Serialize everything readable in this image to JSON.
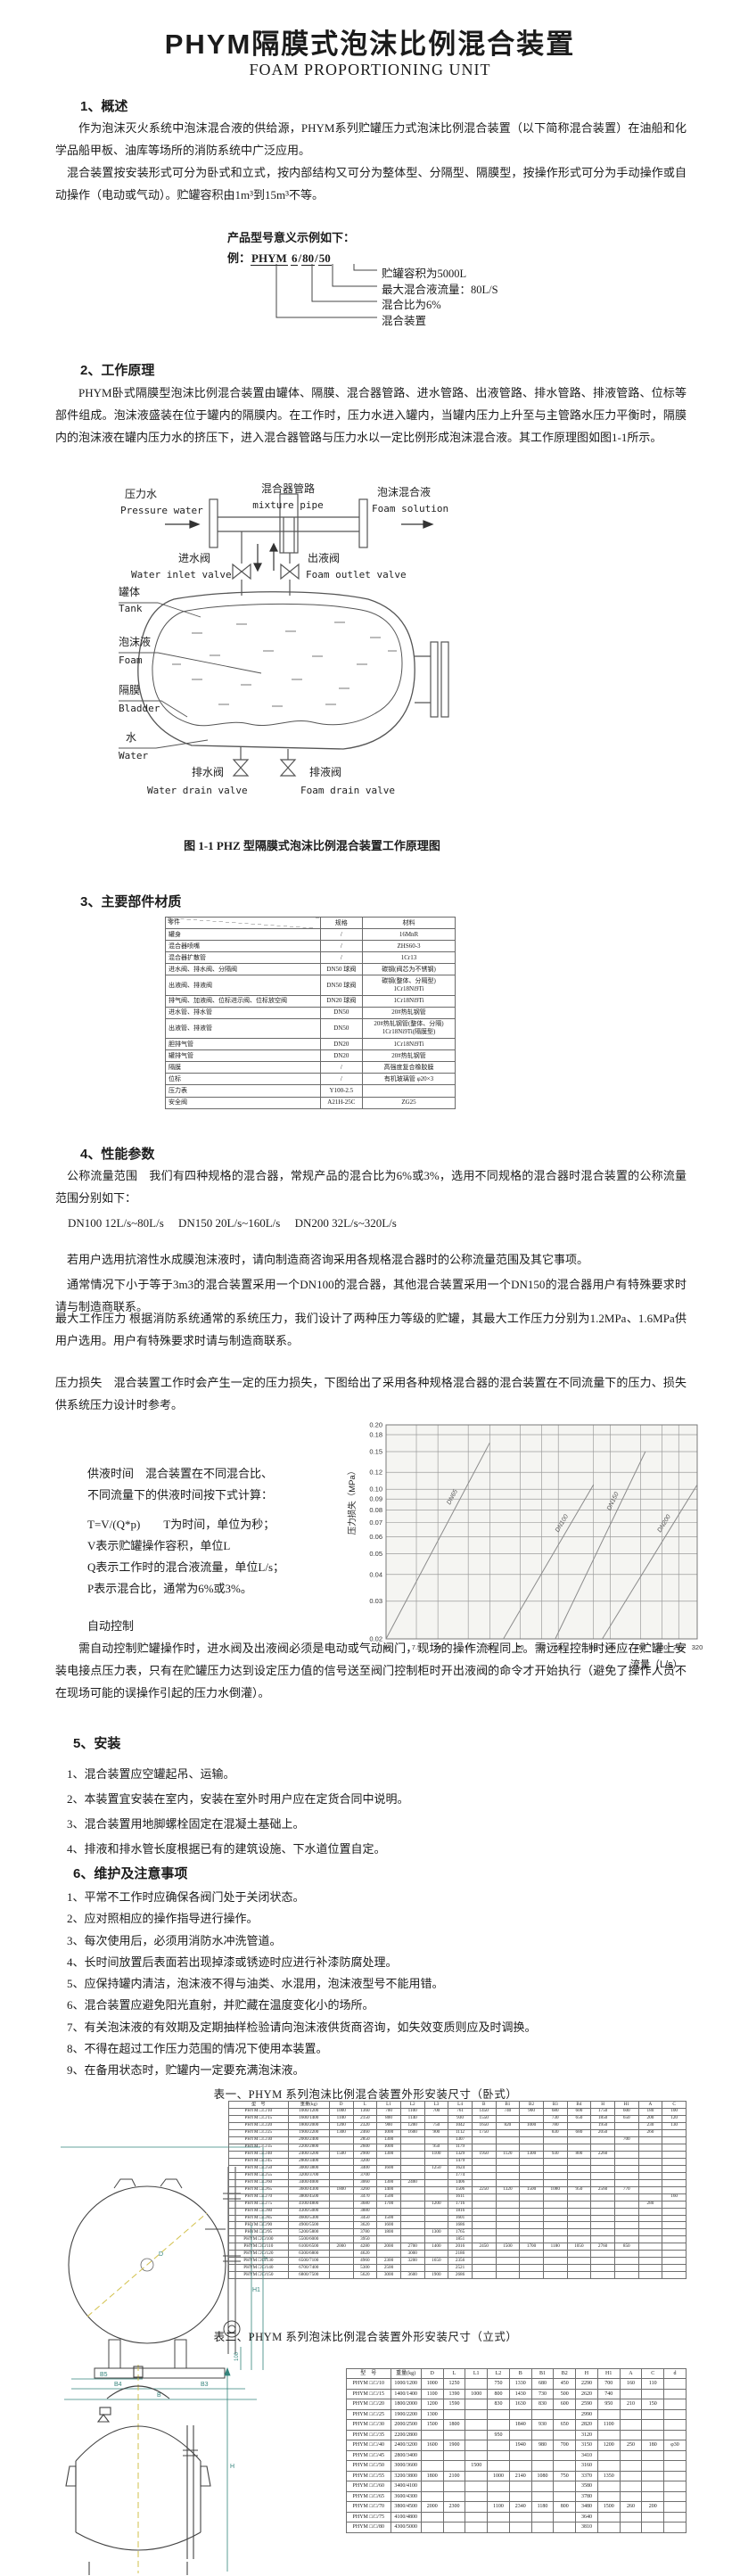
{
  "page": {
    "title": "PHYM隔膜式泡沫比例混合装置",
    "subtitle": "FOAM PROPORTIONING UNIT"
  },
  "s1": {
    "heading": "1、概述",
    "p1": "作为泡沫灭火系统中泡沫混合液的供给源，PHYM系列贮罐压力式泡沫比例混合装置（以下简称混合装置）在油船和化学品船甲板、油库等场所的消防系统中广泛应用。",
    "p2": "混合装置按安装形式可分为卧式和立式，按内部结构又可分为整体型、分隔型、隔膜型，按操作形式可分为手动操作或自动操作（电动或气动）。贮罐容积由1m³到15m³不等。"
  },
  "model": {
    "intro": "产品型号意义示例如下：",
    "prefix": "例：",
    "sep": "/",
    "parts": [
      "PHYM",
      "6",
      "80",
      "50"
    ],
    "labels": [
      "贮罐容积为5000L",
      "最大混合液流量：80L/S",
      "混合比为6%",
      "混合装置"
    ]
  },
  "s2": {
    "heading": "2、工作原理",
    "p1": "PHYM卧式隔膜型泡沫比例混合装置由罐体、隔膜、混合器管路、进水管路、出液管路、排水管路、排液管路、位标等部件组成。泡沫液盛装在位于罐内的隔膜内。在工作时，压力水进入罐内，当罐内压力上升至与主管路水压力平衡时，隔膜内的泡沫液在罐内压力水的挤压下，进入混合器管路与压力水以一定比例形成泡沫混合液。其工作原理图如图1-1所示。"
  },
  "figure": {
    "caption": "图 1-1 PHZ 型隔膜式泡沫比例混合装置工作原理图",
    "labels": {
      "pressure_water": {
        "cn": "压力水",
        "en": "Pressure water"
      },
      "mixture_pipe": {
        "cn": "混合器管路",
        "en": "mixture pipe"
      },
      "foam_solution": {
        "cn": "泡沫混合液",
        "en": "Foam solution"
      },
      "water_inlet": {
        "cn": "进水阀",
        "en": "Water inlet valve"
      },
      "foam_outlet": {
        "cn": "出液阀",
        "en": "Foam outlet valve"
      },
      "tank": {
        "cn": "罐体",
        "en": "Tank"
      },
      "foam": {
        "cn": "泡沫液",
        "en": "Foam"
      },
      "bladder": {
        "cn": "隔膜",
        "en": "Bladder"
      },
      "water": {
        "cn": "水",
        "en": "Water"
      },
      "water_drain": {
        "cn": "排水阀",
        "en": "Water drain valve"
      },
      "foam_drain": {
        "cn": "排液阀",
        "en": "Foam drain valve"
      }
    }
  },
  "s3": {
    "heading": "3、主要部件材质",
    "materials_table": {
      "headers": [
        "零件",
        "规格",
        "材料"
      ],
      "rows": [
        [
          "罐身",
          "/",
          "16MnR"
        ],
        [
          "混合器喷嘴",
          "/",
          "ZHS60-3"
        ],
        [
          "混合器扩散管",
          "/",
          "1Cr13"
        ],
        [
          "进水阀、排水阀、分隔阀",
          "DN50 球阀",
          "碳钢(阀芯为不锈钢)"
        ],
        [
          "出液阀、排液阀",
          "DN50 球阀",
          "碳钢(整体、分隔型)\n1Cr18Ni9Ti"
        ],
        [
          "排气阀、加液阀、位标进示阀、位标放空阀",
          "DN20 球阀",
          "1Cr18Ni9Ti"
        ],
        [
          "进水管、排水管",
          "DN50",
          "20#热轧钢管"
        ],
        [
          "出液管、排液管",
          "DN50",
          "20#热轧钢管(整体、分隔)\n1Cr18Ni9Ti(隔膜型)"
        ],
        [
          "胆排气管",
          "DN20",
          "1Cr18Ni9Ti"
        ],
        [
          "罐排气管",
          "DN20",
          "20#热轧钢管"
        ],
        [
          "隔膜",
          "/",
          "高强度复合橡胶膜"
        ],
        [
          "位标",
          "/",
          "有机玻璃管 φ20×3"
        ],
        [
          "压力表",
          "Y100-2.5",
          ""
        ],
        [
          "安全阀",
          "A21H-25C",
          "ZG25"
        ]
      ]
    }
  },
  "s4": {
    "heading": "4、性能参数",
    "p1": "公称流量范围　我们有四种规格的混合器，常规产品的混合比为6%或3%，选用不同规格的混合器时混合装置的公称流量范围分别如下：",
    "flow_spec": "DN100  12L/s~80L/s　 DN150  20L/s~160L/s　 DN200  32L/s~320L/s",
    "p2": "若用户选用抗溶性水成膜泡沫液时，请向制造商咨询采用各规格混合器时的公称流量范围及其它事项。",
    "p3": "通常情况下小于等于3m3的混合装置采用一个DN100的混合器，其他混合装置采用一个DN150的混合器用户有特殊要求时请与制造商联系。",
    "p4": "最大工作压力 根据消防系统通常的系统压力，我们设计了两种压力等级的贮罐，其最大工作压力分别为1.2MPa、1.6MPa供用户选用。用户有特殊要求时请与制造商联系。",
    "p5": "压力损失　混合装置工作时会产生一定的压力损失，下图给出了采用各种规格混合器的混合装置在不同流量下的压力、损失供系统压力设计时参考。",
    "supply_lines": [
      "供液时间　混合装置在不同混合比、",
      "不同流量下的供液时间按下式计算：",
      "T=V/(Q*p)　　T为时间，单位为秒；",
      "V表示贮罐操作容积，单位L",
      "Q表示工作时的混合液流量，单位L/s；",
      "P表示混合比，通常为6%或3%。"
    ],
    "auto_heading": "自动控制",
    "auto_p": "需自动控制贮罐操作时，进水阀及出液阀必须是电动或气动阀门，现场的操作流程同上。需远程控制时还应在贮罐上安装电接点压力表，只有在贮罐压力达到设定压力值的信号送至阀门控制柜时开出液阀的命令才开始执行（避免了操作人员不在现场可能的误操作引起的压力水倒灌）。"
  },
  "s5": {
    "heading": "5、安装",
    "items": [
      "1、混合装置应空罐起吊、运输。",
      "2、本装置宜安装在室内，安装在室外时用户应在定货合同中说明。",
      "3、混合装置用地脚螺栓固定在混凝土基础上。",
      "4、排液和排水管长度根据已有的建筑设施、下水道位置自定。"
    ]
  },
  "s6": {
    "heading": "6、维护及注意事项",
    "items": [
      "1、平常不工作时应确保各阀门处于关闭状态。",
      "2、应对照相应的操作指导进行操作。",
      "3、每次使用后，必须用消防水冲洗管道。",
      "4、长时间放置后表面若出现掉漆或锈迹时应进行补漆防腐处理。",
      "5、应保持罐内清洁，泡沫液不得与油类、水混用，泡沫液型号不能用错。",
      "6、混合装置应避免阳光直射，并贮藏在温度变化小的场所。",
      "7、有关泡沫液的有效期及定期抽样检验请向泡沫液供货商咨询，如失效变质则应及时调换。",
      "8、不得在超过工作压力范围的情况下使用本装置。",
      "9、在备用状态时，贮罐内一定要充满泡沫液。"
    ]
  },
  "table1": {
    "caption": "表一、PHYM 系列泡沫比例混合装置外形安装尺寸（卧式）",
    "headers": [
      "型　号",
      "重量(kg)",
      "D",
      "L",
      "L1",
      "L2",
      "L3",
      "L4",
      "B",
      "B1",
      "B2",
      "B3",
      "B4",
      "H",
      "H1",
      "A",
      "C"
    ],
    "rows": [
      [
        "PHYM □/□/10",
        "1000/1200",
        "1000",
        "1360",
        "700",
        "1100",
        "700",
        "761",
        "1450",
        "740",
        "900",
        "680",
        "600",
        "1750",
        "600",
        "180",
        "100"
      ],
      [
        "PHYM □/□/15",
        "1600/1400",
        "1100",
        "2150",
        "800",
        "1140",
        "",
        "930",
        "1550",
        "",
        "",
        "730",
        "650",
        "1850",
        "650",
        "200",
        "120"
      ],
      [
        "PHYM □/□/20",
        "1800/2000",
        "1200",
        "2320",
        "900",
        "1200",
        "750",
        "1042",
        "1650",
        "820",
        "1000",
        "780",
        "",
        "1950",
        "",
        "230",
        "130"
      ],
      [
        "PHYM □/□/25",
        "1900/2200",
        "1300",
        "2460",
        "1000",
        "1600",
        "900",
        "1112",
        "1750",
        "",
        "",
        "830",
        "680",
        "2050",
        "",
        "260",
        ""
      ],
      [
        "PHYM □/□/30",
        "2000/2400",
        "",
        "2850",
        "1300",
        "",
        "",
        "1307",
        "",
        "",
        "",
        "",
        "",
        "",
        "700",
        "",
        ""
      ],
      [
        "PHYM □/□/35",
        "2200/2800",
        "",
        "2600",
        "1000",
        "",
        "950",
        "1179",
        "",
        "",
        "",
        "",
        "",
        "",
        "",
        "",
        ""
      ],
      [
        "PHYM □/□/40",
        "2400/3200",
        "1500",
        "2900",
        "1300",
        "",
        "1100",
        "1329",
        "1950",
        "1120",
        "1300",
        "930",
        "800",
        "2260",
        "",
        "",
        ""
      ],
      [
        "PHYM □/□/45",
        "2800/3400",
        "",
        "3200",
        "",
        "",
        "",
        "1479",
        "",
        "",
        "",
        "",
        "",
        "",
        "",
        "",
        ""
      ],
      [
        "PHYM □/□/50",
        "3000/3800",
        "",
        "3400",
        "1600",
        "",
        "1250",
        "1624",
        "",
        "",
        "",
        "",
        "",
        "",
        "",
        "",
        ""
      ],
      [
        "PHYM □/□/55",
        "3200/3700",
        "",
        "3700",
        "",
        "",
        "",
        "1774",
        "",
        "",
        "",
        "",
        "",
        "",
        "",
        "",
        ""
      ],
      [
        "PHYM □/□/60",
        "3400/4000",
        "",
        "3060",
        "1300",
        "2400",
        "",
        "1406",
        "",
        "",
        "",
        "",
        "",
        "",
        "",
        "",
        ""
      ],
      [
        "PHYM □/□/65",
        "3600/4300",
        "1800",
        "3260",
        "1400",
        "",
        "",
        "1506",
        "2250",
        "1320",
        "1500",
        "1080",
        "950",
        "2560",
        "770",
        "",
        ""
      ],
      [
        "PHYM □/□/70",
        "3800/4500",
        "",
        "3470",
        "1500",
        "",
        "",
        "1611",
        "",
        "",
        "",
        "",
        "",
        "",
        "",
        "",
        "160"
      ],
      [
        "PHYM □/□/75",
        "4100/4800",
        "",
        "3680",
        "1700",
        "",
        "1200",
        "1716",
        "",
        "",
        "",
        "",
        "",
        "",
        "",
        "280",
        ""
      ],
      [
        "PHYM □/□/80",
        "4300/5000",
        "",
        "3880",
        "",
        "",
        "",
        "1816",
        "",
        "",
        "",
        "",
        "",
        "",
        "",
        "",
        ""
      ],
      [
        "PHYM □/□/85",
        "4600/5300",
        "",
        "3450",
        "1500",
        "",
        "",
        "1601",
        "",
        "",
        "",
        "",
        "",
        "",
        "",
        "",
        ""
      ],
      [
        "PHYM □/□/90",
        "4900/5500",
        "",
        "3620",
        "1600",
        "",
        "",
        "1686",
        "",
        "",
        "",
        "",
        "",
        "",
        "",
        "",
        ""
      ],
      [
        "PHYM □/□/95",
        "5200/5800",
        "",
        "3780",
        "1800",
        "",
        "1300",
        "1765",
        "",
        "",
        "",
        "",
        "",
        "",
        "",
        "",
        ""
      ],
      [
        "PHYM □/□/100",
        "5500/6000",
        "",
        "3950",
        "",
        "",
        "",
        "1851",
        "",
        "",
        "",
        "",
        "",
        "",
        "",
        "",
        ""
      ],
      [
        "PHYM □/□/110",
        "6100/6500",
        "2000",
        "4280",
        "2000",
        "2700",
        "1400",
        "2016",
        "2450",
        "1500",
        "1700",
        "1180",
        "1050",
        "2760",
        "850",
        "",
        ""
      ],
      [
        "PHYM □/□/120",
        "6300/6800",
        "",
        "4620",
        "",
        "3000",
        "",
        "2186",
        "",
        "",
        "",
        "",
        "",
        "",
        "",
        "",
        ""
      ],
      [
        "PHYM □/□/130",
        "6500/7100",
        "",
        "4960",
        "2300",
        "3200",
        "1650",
        "2356",
        "",
        "",
        "",
        "",
        "",
        "",
        "",
        "",
        ""
      ],
      [
        "PHYM □/□/140",
        "6700/7400",
        "",
        "5300",
        "2500",
        "",
        "",
        "2521",
        "",
        "",
        "",
        "",
        "",
        "",
        "",
        "",
        ""
      ],
      [
        "PHYM □/□/150",
        "6800/7500",
        "",
        "5620",
        "3000",
        "3600",
        "1900",
        "2686",
        "",
        "",
        "",
        "",
        "",
        "",
        "",
        "",
        ""
      ]
    ]
  },
  "table2": {
    "caption": "表二、PHYM 系列泡沫比例混合装置外形安装尺寸（立式）",
    "headers": [
      "型　号",
      "重量(kg)",
      "D",
      "L",
      "L1",
      "L2",
      "B",
      "B1",
      "B2",
      "H",
      "H1",
      "A",
      "C",
      "d"
    ],
    "rows": [
      [
        "PHYM □/□/10",
        "1000/1200",
        "1000",
        "1250",
        "",
        "750",
        "1330",
        "680",
        "450",
        "2290",
        "700",
        "160",
        "110",
        ""
      ],
      [
        "PHYM □/□/15",
        "1400/1400",
        "1100",
        "1390",
        "1000",
        "800",
        "1430",
        "730",
        "500",
        "2620",
        "740",
        "",
        "",
        ""
      ],
      [
        "PHYM □/□/20",
        "1800/2000",
        "1200",
        "1590",
        "",
        "830",
        "1630",
        "830",
        "600",
        "2590",
        "950",
        "210",
        "150",
        ""
      ],
      [
        "PHYM □/□/25",
        "1900/2200",
        "1300",
        "",
        "",
        "",
        "",
        "",
        "",
        "2990",
        "",
        "",
        "",
        ""
      ],
      [
        "PHYM □/□/30",
        "2000/2500",
        "1500",
        "1800",
        "",
        "",
        "1840",
        "930",
        "650",
        "2820",
        "1100",
        "",
        "",
        ""
      ],
      [
        "PHYM □/□/35",
        "2200/2800",
        "",
        "",
        "",
        "950",
        "",
        "",
        "",
        "3120",
        "",
        "",
        "",
        ""
      ],
      [
        "PHYM □/□/40",
        "2400/3200",
        "1600",
        "1900",
        "",
        "",
        "1940",
        "980",
        "700",
        "3150",
        "1200",
        "250",
        "180",
        "φ30"
      ],
      [
        "PHYM □/□/45",
        "2800/3400",
        "",
        "",
        "",
        "",
        "",
        "",
        "",
        "3410",
        "",
        "",
        "",
        ""
      ],
      [
        "PHYM □/□/50",
        "3000/3600",
        "",
        "",
        "1500",
        "",
        "",
        "",
        "",
        "3160",
        "",
        "",
        "",
        ""
      ],
      [
        "PHYM □/□/55",
        "3200/3800",
        "1800",
        "2100",
        "",
        "1000",
        "2140",
        "1080",
        "750",
        "3370",
        "1350",
        "",
        "",
        ""
      ],
      [
        "PHYM □/□/60",
        "3400/4100",
        "",
        "",
        "",
        "",
        "",
        "",
        "",
        "3580",
        "",
        "",
        "",
        ""
      ],
      [
        "PHYM □/□/65",
        "3600/4300",
        "",
        "",
        "",
        "",
        "",
        "",
        "",
        "3780",
        "",
        "",
        "",
        ""
      ],
      [
        "PHYM □/□/70",
        "3800/4500",
        "2000",
        "2300",
        "",
        "1100",
        "2340",
        "1180",
        "800",
        "3480",
        "1500",
        "260",
        "200",
        ""
      ],
      [
        "PHYM □/□/75",
        "4100/4800",
        "",
        "",
        "",
        "",
        "",
        "",
        "",
        "3640",
        "",
        "",
        "",
        ""
      ],
      [
        "PHYM □/□/80",
        "4300/5000",
        "",
        "",
        "",
        "",
        "",
        "",
        "",
        "3810",
        "",
        "",
        "",
        ""
      ]
    ]
  },
  "drawing1": {
    "d": "D",
    "b5": "B5",
    "b4": "B4",
    "b3": "B3",
    "b": "B",
    "h": "H",
    "h1": "H1",
    "dim100": "100"
  },
  "drawing2": {
    "h": "H"
  },
  "chart_data": {
    "type": "line",
    "title": "",
    "xlabel": "流量（L/s）",
    "ylabel": "压力损失（MPa）",
    "x_scale": "log",
    "y_scale": "log",
    "xlim": [
      5,
      320
    ],
    "ylim": [
      0.02,
      0.2
    ],
    "x_ticks": [
      "5",
      "7.5",
      "10",
      "15",
      "20",
      "30",
      "40",
      "50",
      "80",
      "100",
      "150",
      "200",
      "250",
      "320"
    ],
    "y_ticks": [
      "0.20",
      "0.18",
      "0.15",
      "0.12",
      "0.10",
      "0.09",
      "0.08",
      "0.07",
      "0.06",
      "0.05",
      "0.04",
      "0.03",
      "0.02"
    ],
    "grid": true,
    "legend": "inline-labels",
    "series": [
      {
        "name": "DN65",
        "x": [
          5,
          20
        ],
        "y": [
          0.02,
          0.165
        ]
      },
      {
        "name": "DN100",
        "x": [
          24,
          80
        ],
        "y": [
          0.02,
          0.105
        ]
      },
      {
        "name": "DN150",
        "x": [
          48,
          160
        ],
        "y": [
          0.02,
          0.15
        ]
      },
      {
        "name": "DN200",
        "x": [
          90,
          320
        ],
        "y": [
          0.02,
          0.105
        ]
      }
    ]
  }
}
